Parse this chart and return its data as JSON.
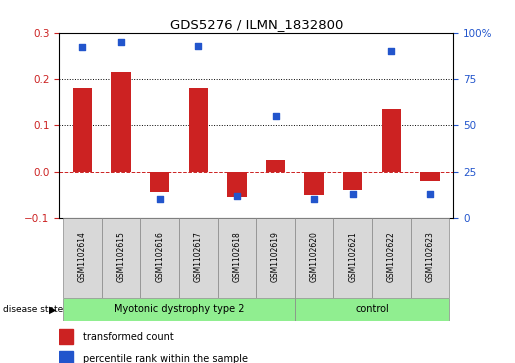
{
  "title": "GDS5276 / ILMN_1832800",
  "samples": [
    "GSM1102614",
    "GSM1102615",
    "GSM1102616",
    "GSM1102617",
    "GSM1102618",
    "GSM1102619",
    "GSM1102620",
    "GSM1102621",
    "GSM1102622",
    "GSM1102623"
  ],
  "transformed_count": [
    0.18,
    0.215,
    -0.045,
    0.18,
    -0.055,
    0.025,
    -0.05,
    -0.04,
    0.135,
    -0.02
  ],
  "percentile_rank": [
    92,
    95,
    10,
    93,
    12,
    55,
    10,
    13,
    90,
    13
  ],
  "bar_color": "#cc2222",
  "dot_color": "#2255cc",
  "ylim_left": [
    -0.1,
    0.3
  ],
  "ylim_right": [
    0,
    100
  ],
  "yticks_left": [
    -0.1,
    0.0,
    0.1,
    0.2,
    0.3
  ],
  "yticks_right": [
    0,
    25,
    50,
    75,
    100
  ],
  "ytick_labels_right": [
    "0",
    "25",
    "50",
    "75",
    "100%"
  ],
  "disease_groups": [
    {
      "label": "Myotonic dystrophy type 2",
      "start": 0,
      "end": 5,
      "color": "#90ee90"
    },
    {
      "label": "control",
      "start": 6,
      "end": 9,
      "color": "#90ee90"
    }
  ],
  "disease_state_label": "disease state",
  "legend_bar_label": "transformed count",
  "legend_dot_label": "percentile rank within the sample",
  "dotted_lines": [
    0.1,
    0.2
  ],
  "zero_line_color": "#cc2222",
  "background_color": "#ffffff",
  "bar_width": 0.5
}
